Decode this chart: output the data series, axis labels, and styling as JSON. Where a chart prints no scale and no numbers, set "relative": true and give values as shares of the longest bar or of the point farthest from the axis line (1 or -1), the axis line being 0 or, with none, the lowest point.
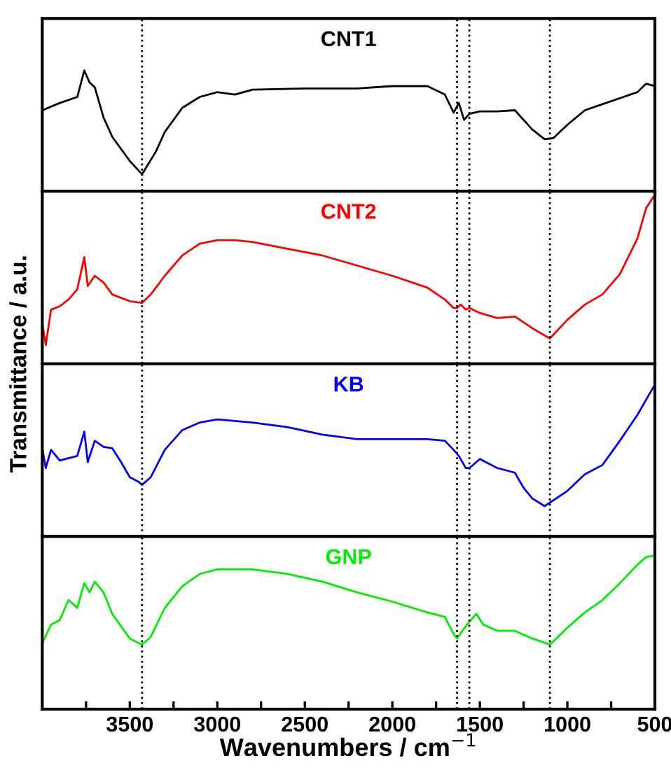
{
  "chart_data": [
    {
      "type": "line",
      "title": "CNT1",
      "ylabel": "Transmittance / a.u.",
      "relative": true,
      "xlim": [
        4000,
        500
      ],
      "tick_labels": false,
      "line_style": "solid",
      "x": [
        4000,
        3900,
        3800,
        3760,
        3730,
        3700,
        3650,
        3600,
        3500,
        3430,
        3350,
        3300,
        3200,
        3100,
        3000,
        2900,
        2800,
        2500,
        2200,
        2000,
        1800,
        1700,
        1650,
        1620,
        1590,
        1560,
        1500,
        1400,
        1300,
        1200,
        1130,
        1080,
        1000,
        900,
        800,
        700,
        600,
        550,
        500
      ],
      "series": [
        {
          "color": "#000000",
          "values": [
            0.67,
            0.73,
            0.78,
            1,
            0.9,
            0.86,
            0.61,
            0.45,
            0.25,
            0.14,
            0.33,
            0.49,
            0.69,
            0.78,
            0.82,
            0.8,
            0.84,
            0.85,
            0.85,
            0.87,
            0.87,
            0.8,
            0.65,
            0.73,
            0.59,
            0.64,
            0.66,
            0.66,
            0.67,
            0.51,
            0.43,
            0.44,
            0.55,
            0.67,
            0.72,
            0.77,
            0.82,
            0.89,
            0.87
          ]
        }
      ],
      "ref_lines": [
        {
          "axis": "x",
          "value": 3430,
          "color": "#000000",
          "line_style": "dotted"
        },
        {
          "axis": "x",
          "value": 1630,
          "color": "#000000",
          "line_style": "dotted"
        },
        {
          "axis": "x",
          "value": 1560,
          "color": "#000000",
          "line_style": "dotted"
        },
        {
          "axis": "x",
          "value": 1100,
          "color": "#000000",
          "line_style": "dotted"
        }
      ]
    },
    {
      "type": "line",
      "title": "CNT2",
      "relative": true,
      "xlim": [
        4000,
        500
      ],
      "tick_labels": false,
      "line_style": "solid",
      "x": [
        4000,
        3980,
        3950,
        3900,
        3850,
        3800,
        3760,
        3740,
        3700,
        3650,
        3600,
        3500,
        3430,
        3380,
        3300,
        3200,
        3100,
        3000,
        2900,
        2800,
        2600,
        2400,
        2200,
        2000,
        1800,
        1700,
        1650,
        1630,
        1610,
        1580,
        1560,
        1500,
        1400,
        1300,
        1200,
        1100,
        1000,
        900,
        800,
        700,
        600,
        550,
        500
      ],
      "series": [
        {
          "color": "#ff0000",
          "values": [
            0.24,
            0.11,
            0.32,
            0.34,
            0.38,
            0.44,
            0.63,
            0.46,
            0.52,
            0.48,
            0.41,
            0.37,
            0.36,
            0.41,
            0.52,
            0.64,
            0.71,
            0.73,
            0.73,
            0.72,
            0.68,
            0.64,
            0.58,
            0.52,
            0.45,
            0.38,
            0.33,
            0.33,
            0.35,
            0.32,
            0.33,
            0.3,
            0.27,
            0.28,
            0.21,
            0.15,
            0.26,
            0.35,
            0.41,
            0.53,
            0.74,
            0.92,
            1
          ]
        }
      ],
      "ref_lines": [
        {
          "axis": "x",
          "value": 3430,
          "color": "#000000",
          "line_style": "dotted"
        },
        {
          "axis": "x",
          "value": 1630,
          "color": "#000000",
          "line_style": "dotted"
        },
        {
          "axis": "x",
          "value": 1560,
          "color": "#000000",
          "line_style": "dotted"
        },
        {
          "axis": "x",
          "value": 1100,
          "color": "#000000",
          "line_style": "dotted"
        }
      ]
    },
    {
      "type": "line",
      "title": "KB",
      "relative": true,
      "xlim": [
        4000,
        500
      ],
      "tick_labels": false,
      "line_style": "solid",
      "x": [
        4000,
        3980,
        3950,
        3900,
        3800,
        3760,
        3740,
        3700,
        3650,
        3600,
        3550,
        3500,
        3450,
        3430,
        3380,
        3300,
        3200,
        3100,
        3000,
        2900,
        2800,
        2600,
        2400,
        2200,
        2000,
        1800,
        1700,
        1650,
        1620,
        1580,
        1560,
        1500,
        1400,
        1300,
        1250,
        1200,
        1130,
        1000,
        900,
        800,
        700,
        600,
        500
      ],
      "series": [
        {
          "color": "#0000ff",
          "values": [
            0.58,
            0.45,
            0.57,
            0.5,
            0.53,
            0.69,
            0.49,
            0.63,
            0.59,
            0.58,
            0.49,
            0.39,
            0.36,
            0.34,
            0.39,
            0.57,
            0.7,
            0.75,
            0.77,
            0.76,
            0.75,
            0.72,
            0.67,
            0.64,
            0.64,
            0.64,
            0.63,
            0.57,
            0.53,
            0.45,
            0.45,
            0.51,
            0.45,
            0.42,
            0.32,
            0.25,
            0.2,
            0.3,
            0.41,
            0.47,
            0.63,
            0.8,
            1
          ]
        }
      ],
      "ref_lines": [
        {
          "axis": "x",
          "value": 3430,
          "color": "#000000",
          "line_style": "dotted"
        },
        {
          "axis": "x",
          "value": 1630,
          "color": "#000000",
          "line_style": "dotted"
        },
        {
          "axis": "x",
          "value": 1560,
          "color": "#000000",
          "line_style": "dotted"
        },
        {
          "axis": "x",
          "value": 1100,
          "color": "#000000",
          "line_style": "dotted"
        }
      ]
    },
    {
      "type": "line",
      "title": "GNP",
      "xlabel": "Wavenumbers / cm$^{−1}$",
      "relative": true,
      "xlim": [
        4000,
        500
      ],
      "tick_labels": "x",
      "line_style": "solid",
      "xticks": [
        {
          "value": 3750,
          "label": null
        },
        3500,
        {
          "value": 3250,
          "label": null
        },
        3000,
        {
          "value": 2750,
          "label": null
        },
        2500,
        {
          "value": 2250,
          "label": null
        },
        2000,
        {
          "value": 1750,
          "label": null
        },
        1500,
        {
          "value": 1250,
          "label": null
        },
        1000,
        {
          "value": 750,
          "label": null
        },
        500
      ],
      "x": [
        4000,
        3950,
        3900,
        3850,
        3800,
        3760,
        3730,
        3700,
        3650,
        3600,
        3500,
        3430,
        3380,
        3300,
        3200,
        3100,
        3000,
        2800,
        2600,
        2400,
        2200,
        2000,
        1800,
        1700,
        1650,
        1630,
        1600,
        1560,
        1520,
        1480,
        1400,
        1300,
        1200,
        1100,
        1000,
        900,
        800,
        700,
        600,
        550,
        500
      ],
      "series": [
        {
          "color": "#00ee00",
          "values": [
            0.43,
            0.55,
            0.58,
            0.71,
            0.66,
            0.82,
            0.76,
            0.83,
            0.76,
            0.62,
            0.46,
            0.42,
            0.47,
            0.66,
            0.8,
            0.88,
            0.91,
            0.91,
            0.88,
            0.83,
            0.76,
            0.7,
            0.63,
            0.6,
            0.49,
            0.46,
            0.51,
            0.57,
            0.62,
            0.55,
            0.51,
            0.51,
            0.46,
            0.42,
            0.53,
            0.63,
            0.71,
            0.82,
            0.94,
            0.99,
            1
          ]
        }
      ],
      "ref_lines": [
        {
          "axis": "x",
          "value": 3430,
          "color": "#000000",
          "line_style": "dotted"
        },
        {
          "axis": "x",
          "value": 1630,
          "color": "#000000",
          "line_style": "dotted"
        },
        {
          "axis": "x",
          "value": 1560,
          "color": "#000000",
          "line_style": "dotted"
        },
        {
          "axis": "x",
          "value": 1100,
          "color": "#000000",
          "line_style": "dotted"
        }
      ]
    }
  ]
}
